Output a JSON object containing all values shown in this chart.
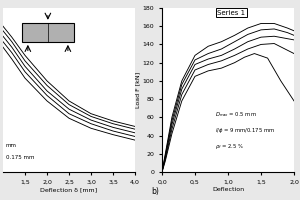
{
  "left_panel": {
    "xlabel": "Deflection δ [mm]",
    "xlim": [
      1.0,
      4.0
    ],
    "xticks": [
      1.5,
      2.0,
      2.5,
      3.0,
      3.5,
      4.0
    ],
    "ylim": [
      0,
      180
    ],
    "curves": [
      {
        "x": [
          1.0,
          1.2,
          1.5,
          2.0,
          2.5,
          3.0,
          3.5,
          4.0
        ],
        "y": [
          160,
          148,
          128,
          100,
          78,
          64,
          56,
          50
        ]
      },
      {
        "x": [
          1.0,
          1.2,
          1.5,
          2.0,
          2.5,
          3.0,
          3.5,
          4.0
        ],
        "y": [
          155,
          143,
          122,
          95,
          74,
          61,
          53,
          47
        ]
      },
      {
        "x": [
          1.0,
          1.2,
          1.5,
          2.0,
          2.5,
          3.0,
          3.5,
          4.0
        ],
        "y": [
          149,
          137,
          116,
          89,
          69,
          57,
          49,
          43
        ]
      },
      {
        "x": [
          1.0,
          1.2,
          1.5,
          2.0,
          2.5,
          3.0,
          3.5,
          4.0
        ],
        "y": [
          143,
          131,
          110,
          84,
          64,
          53,
          45,
          39
        ]
      },
      {
        "x": [
          1.0,
          1.2,
          1.5,
          2.0,
          2.5,
          3.0,
          3.5,
          4.0
        ],
        "y": [
          137,
          124,
          103,
          78,
          59,
          48,
          41,
          35
        ]
      }
    ],
    "ann1": "mm",
    "ann2": "0.175 mm"
  },
  "right_panel": {
    "ylabel": "Load F [kN]",
    "xlabel": "Deflection",
    "xlim": [
      0.0,
      2.0
    ],
    "xticks": [
      0.0,
      0.5,
      1.0,
      1.5,
      2.0
    ],
    "ylim": [
      0,
      180
    ],
    "yticks": [
      0,
      20,
      40,
      60,
      80,
      100,
      120,
      140,
      160,
      180
    ],
    "legend": "Series 1",
    "curves": [
      {
        "x": [
          0.0,
          0.05,
          0.15,
          0.3,
          0.5,
          0.7,
          0.9,
          1.1,
          1.3,
          1.5,
          1.7,
          1.9,
          2.0
        ],
        "y": [
          0,
          20,
          60,
          100,
          128,
          138,
          143,
          150,
          158,
          163,
          163,
          158,
          155
        ]
      },
      {
        "x": [
          0.0,
          0.05,
          0.15,
          0.3,
          0.5,
          0.7,
          0.9,
          1.1,
          1.3,
          1.5,
          1.7,
          1.9,
          2.0
        ],
        "y": [
          0,
          18,
          56,
          96,
          123,
          130,
          135,
          143,
          151,
          156,
          157,
          153,
          150
        ]
      },
      {
        "x": [
          0.0,
          0.05,
          0.15,
          0.3,
          0.5,
          0.7,
          0.9,
          1.1,
          1.3,
          1.5,
          1.7,
          2.0
        ],
        "y": [
          0,
          16,
          52,
          91,
          118,
          124,
          128,
          135,
          143,
          148,
          149,
          145
        ]
      },
      {
        "x": [
          0.0,
          0.05,
          0.15,
          0.3,
          0.5,
          0.7,
          0.9,
          1.1,
          1.3,
          1.5,
          1.7,
          2.0
        ],
        "y": [
          0,
          14,
          47,
          85,
          112,
          118,
          122,
          128,
          135,
          140,
          141,
          130
        ]
      },
      {
        "x": [
          0.0,
          0.05,
          0.15,
          0.3,
          0.5,
          0.7,
          0.9,
          1.1,
          1.25,
          1.4,
          1.6,
          1.8,
          2.0
        ],
        "y": [
          0,
          12,
          42,
          78,
          105,
          111,
          114,
          120,
          126,
          130,
          125,
          100,
          78
        ]
      }
    ],
    "dmax": "$D_{max}$ = 0.5 mm",
    "loverl": "$l$/$\\phi$ = 9 mm/0.175 mm",
    "rhof": "$\\rho_f$ = 2.5 %"
  },
  "background_color": "#e8e8e8",
  "line_color": "black",
  "panel_bg": "white"
}
